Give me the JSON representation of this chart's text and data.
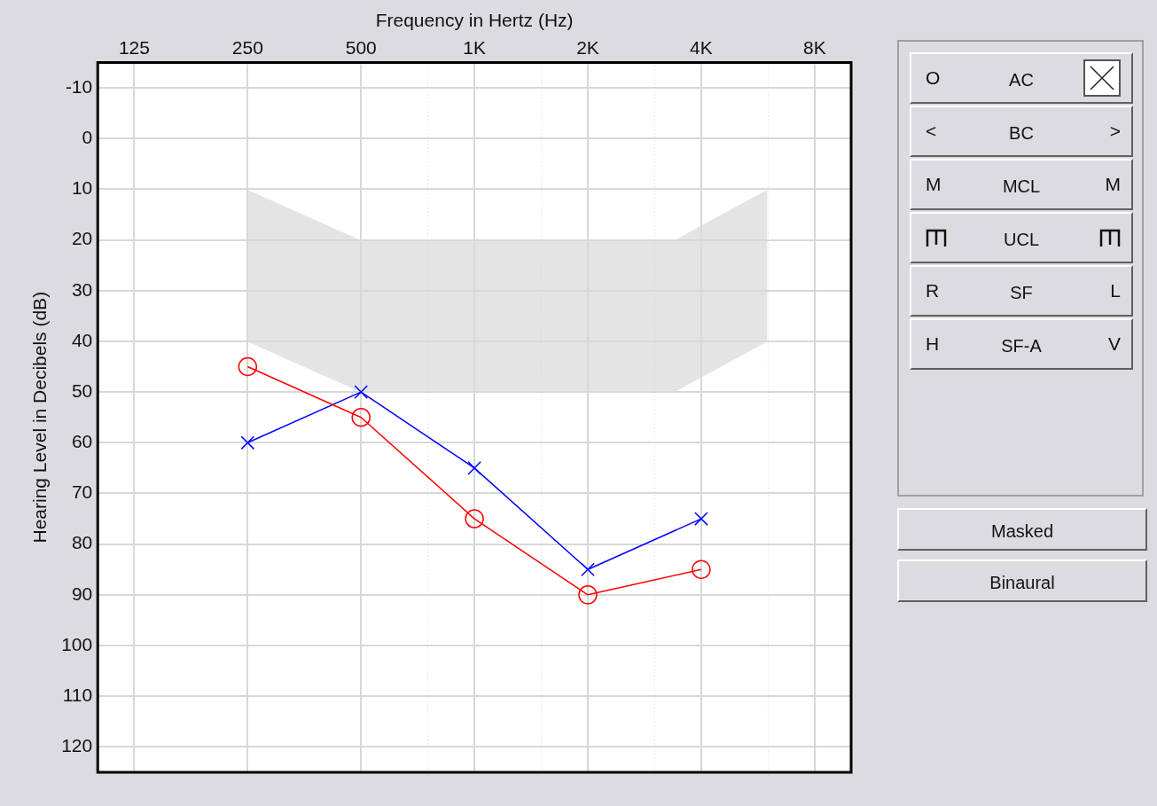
{
  "chart_data": [
    {
      "type": "line",
      "xlabel": "Frequency in Hertz (Hz)",
      "ylabel": "Hearing Level in Decibels (dB)",
      "log": "x",
      "xlim": [
        100,
        10000
      ],
      "ylim": [
        125,
        -15
      ],
      "xticks": [
        {
          "value": 125,
          "label": "125"
        },
        {
          "value": 250,
          "label": "250"
        },
        {
          "value": 500,
          "label": "500"
        },
        {
          "value": 750,
          "label": null
        },
        {
          "value": 1000,
          "label": "1K"
        },
        {
          "value": 1500,
          "label": null
        },
        {
          "value": 2000,
          "label": "2K"
        },
        {
          "value": 3000,
          "label": null
        },
        {
          "value": 4000,
          "label": "4K"
        },
        {
          "value": 6000,
          "label": null
        },
        {
          "value": 8000,
          "label": "8K"
        }
      ],
      "yticks": [
        -10,
        0,
        10,
        20,
        30,
        40,
        50,
        60,
        70,
        80,
        90,
        100,
        110,
        120
      ],
      "grid": true,
      "line_style": "solid",
      "series": [
        {
          "color": "#ff0000",
          "marker": "circle",
          "x": [
            250,
            500,
            1000,
            2000,
            4000
          ],
          "values": [
            45,
            55,
            75,
            90,
            85
          ]
        },
        {
          "color": "#0000ff",
          "marker": "cross",
          "x": [
            250,
            500,
            1000,
            2000,
            4000
          ],
          "values": [
            60,
            50,
            65,
            85,
            75
          ]
        }
      ]
    },
    {
      "type": "other",
      "annotations": [
        "O",
        "AC",
        "<",
        "BC",
        ">",
        "M",
        "MCL",
        "M",
        "UCL",
        "R",
        "SF",
        "L",
        "H",
        "SF-A",
        "V",
        "Masked",
        "Binaural"
      ]
    }
  ]
}
